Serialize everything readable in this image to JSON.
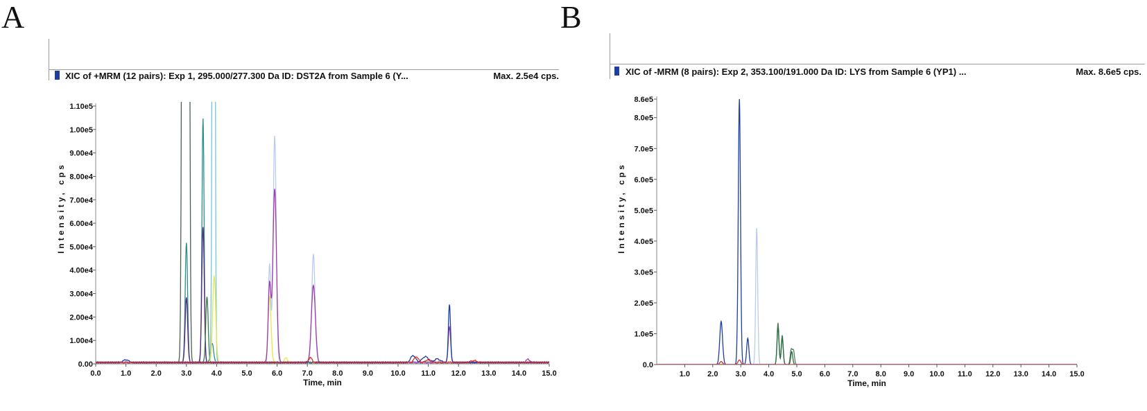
{
  "panels": {
    "A": {
      "letter": "A",
      "header": "XIC of +MRM (12 pairs): Exp 1, 295.000/277.300 Da ID: DST2A from Sample 6 (Y...",
      "max": "Max. 2.5e4 cps."
    },
    "B": {
      "letter": "B",
      "header": "XIC of -MRM (8 pairs): Exp 2, 353.100/191.000 Da ID: LYS from Sample 6 (YP1) ...",
      "max": "Max. 8.6e5 cps."
    }
  },
  "chart_data": [
    {
      "type": "line",
      "title": "XIC of +MRM (12 pairs): Exp 1, 295.000/277.300 Da ID: DST2A from Sample 6 (Y...",
      "xlabel": "Time, min",
      "ylabel": "Intensity, cps",
      "xlim": [
        0,
        15
      ],
      "ylim": [
        0,
        110000
      ],
      "xticks": [
        "0.0",
        "1.0",
        "2.0",
        "3.0",
        "4.0",
        "5.0",
        "6.0",
        "7.0",
        "8.0",
        "9.0",
        "10.0",
        "11.0",
        "12.0",
        "13.0",
        "14.0",
        "15.0"
      ],
      "yticks": [
        "0.00",
        "1.00e4",
        "2.00e4",
        "3.00e4",
        "4.00e4",
        "5.00e4",
        "6.00e4",
        "7.00e4",
        "8.00e4",
        "9.00e4",
        "1.00e5",
        "1.10e5"
      ],
      "baseline": 600,
      "series": [
        {
          "color": "#4b5d4e",
          "peaks": [
            [
              2.9,
              500000,
              0.04
            ],
            [
              3.05,
              500000,
              0.04
            ]
          ]
        },
        {
          "color": "#2a8c8c",
          "peaks": [
            [
              3.0,
              51000,
              0.04
            ],
            [
              3.55,
              104000,
              0.035
            ],
            [
              3.85,
              8000,
              0.05
            ]
          ]
        },
        {
          "color": "#5a2a7a",
          "peaks": [
            [
              3.0,
              28000,
              0.04
            ],
            [
              3.55,
              58000,
              0.04
            ]
          ]
        },
        {
          "color": "#3d7a4a",
          "peaks": [
            [
              3.68,
              28000,
              0.04
            ]
          ]
        },
        {
          "color": "#6fc8d8",
          "peaks": [
            [
              3.9,
              500000,
              0.035
            ]
          ]
        },
        {
          "color": "#e6e64a",
          "peaks": [
            [
              3.92,
              37000,
              0.05
            ],
            [
              5.75,
              28000,
              0.05
            ],
            [
              6.3,
              2000,
              0.05
            ]
          ]
        },
        {
          "color": "#b7ccef",
          "peaks": [
            [
              5.75,
              42000,
              0.04
            ],
            [
              5.92,
              97000,
              0.05
            ],
            [
              7.2,
              46000,
              0.055
            ]
          ]
        },
        {
          "color": "#a03aa8",
          "peaks": [
            [
              5.75,
              33000,
              0.045
            ],
            [
              5.92,
              74000,
              0.06
            ],
            [
              7.2,
              33000,
              0.065
            ],
            [
              11.7,
              15000,
              0.04
            ],
            [
              14.3,
              1500,
              0.05
            ]
          ]
        },
        {
          "color": "#1b3d9e",
          "peaks": [
            [
              1.0,
              1200,
              0.08
            ],
            [
              10.5,
              3000,
              0.08
            ],
            [
              10.9,
              2500,
              0.1
            ],
            [
              11.3,
              1500,
              0.1
            ],
            [
              11.7,
              25000,
              0.035
            ]
          ]
        },
        {
          "color": "#e02b2b",
          "peaks": [
            [
              7.1,
              2000,
              0.06
            ],
            [
              10.6,
              2500,
              0.07
            ],
            [
              11.0,
              1200,
              0.08
            ],
            [
              12.5,
              800,
              0.1
            ]
          ]
        }
      ]
    },
    {
      "type": "line",
      "title": "XIC of -MRM (8 pairs): Exp 2, 353.100/191.000 Da ID: LYS from Sample 6 (YP1) ...",
      "xlabel": "Time, min",
      "ylabel": "Intensity, cps",
      "xlim": [
        0,
        15
      ],
      "ylim": [
        0,
        860000
      ],
      "xticks": [
        "1.0",
        "2.0",
        "3.0",
        "4.0",
        "5.0",
        "6.0",
        "7.0",
        "8.0",
        "9.0",
        "10.0",
        "11.0",
        "12.0",
        "13.0",
        "14.0",
        "15.0"
      ],
      "yticks": [
        "0.0",
        "1.0e5",
        "2.0e5",
        "3.0e5",
        "4.0e5",
        "5.0e5",
        "6.0e5",
        "7.0e5",
        "8.0e5",
        "8.6e5"
      ],
      "baseline": 0,
      "series": [
        {
          "color": "#1b3d9e",
          "peaks": [
            [
              2.3,
              140000,
              0.05
            ],
            [
              2.95,
              860000,
              0.04
            ],
            [
              3.25,
              85000,
              0.04
            ]
          ]
        },
        {
          "color": "#b7ccef",
          "peaks": [
            [
              3.57,
              442000,
              0.035
            ]
          ]
        },
        {
          "color": "#5a7a5e",
          "peaks": [
            [
              4.33,
              135000,
              0.035
            ],
            [
              4.48,
              95000,
              0.035
            ],
            [
              4.8,
              48000,
              0.035
            ],
            [
              4.88,
              45000,
              0.035
            ]
          ]
        },
        {
          "color": "#2a6e44",
          "peaks": [
            [
              4.33,
              120000,
              0.035
            ],
            [
              4.48,
              85000,
              0.035
            ],
            [
              4.82,
              42000,
              0.035
            ]
          ]
        },
        {
          "color": "#e02b2b",
          "peaks": [
            [
              2.3,
              10000,
              0.05
            ],
            [
              2.95,
              15000,
              0.05
            ]
          ]
        }
      ]
    }
  ]
}
